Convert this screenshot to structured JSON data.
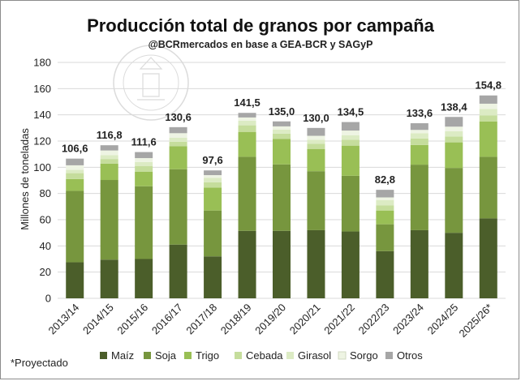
{
  "chart_data": {
    "type": "bar",
    "stacked": true,
    "title": "Producción total de granos por campaña",
    "subtitle": "@BCRmercados en base a GEA-BCR y SAGyP",
    "xlabel": "",
    "ylabel": "Millones de toneladas",
    "ylim": [
      0,
      180
    ],
    "yticks": [
      0,
      20,
      40,
      60,
      80,
      100,
      120,
      140,
      160,
      180
    ],
    "grid": true,
    "legend_position": "bottom",
    "footnote": "*Proyectado",
    "categories": [
      "2013/14",
      "2014/15",
      "2015/16",
      "2016/17",
      "2017/18",
      "2018/19",
      "2019/20",
      "2020/21",
      "2021/22",
      "2022/23",
      "2023/24",
      "2024/25",
      "2025/26*"
    ],
    "totals": [
      "106,6",
      "116,8",
      "111,6",
      "130,6",
      "97,6",
      "141,5",
      "135,0",
      "130,0",
      "134,5",
      "82,8",
      "133,6",
      "138,4",
      "154,8"
    ],
    "series": [
      {
        "name": "Maíz",
        "color": "#4b5e2a",
        "values": [
          27.5,
          29.5,
          30.0,
          41.0,
          32.0,
          51.5,
          51.5,
          52.0,
          51.0,
          36.0,
          52.0,
          50.0,
          61.0
        ]
      },
      {
        "name": "Soja",
        "color": "#77963e",
        "values": [
          54.5,
          60.8,
          55.5,
          57.5,
          35.0,
          56.5,
          50.7,
          45.0,
          42.5,
          20.5,
          50.0,
          49.5,
          47.0
        ]
      },
      {
        "name": "Trigo",
        "color": "#99bf55",
        "values": [
          9.0,
          12.5,
          11.0,
          17.5,
          17.5,
          19.0,
          19.5,
          17.0,
          23.0,
          10.5,
          15.0,
          19.5,
          27.0
        ]
      },
      {
        "name": "Cebada",
        "color": "#c5dd9c",
        "values": [
          4.5,
          3.5,
          4.5,
          3.5,
          4.0,
          5.0,
          4.0,
          4.0,
          4.5,
          4.0,
          5.0,
          4.5,
          4.5
        ]
      },
      {
        "name": "Girasol",
        "color": "#dcebc4",
        "values": [
          2.5,
          3.0,
          3.0,
          3.0,
          3.5,
          3.5,
          3.0,
          3.0,
          3.5,
          4.0,
          4.0,
          4.0,
          5.0
        ]
      },
      {
        "name": "Sorgo",
        "color": "#eef4e3",
        "values": [
          3.5,
          3.5,
          3.0,
          3.5,
          2.0,
          2.5,
          2.5,
          3.0,
          3.5,
          2.0,
          2.5,
          3.5,
          4.0
        ]
      },
      {
        "name": "Otros",
        "color": "#a6a6a6",
        "values": [
          5.1,
          4.0,
          4.6,
          4.6,
          3.6,
          3.5,
          3.8,
          6.0,
          6.5,
          5.8,
          5.1,
          7.4,
          6.3
        ]
      }
    ]
  }
}
